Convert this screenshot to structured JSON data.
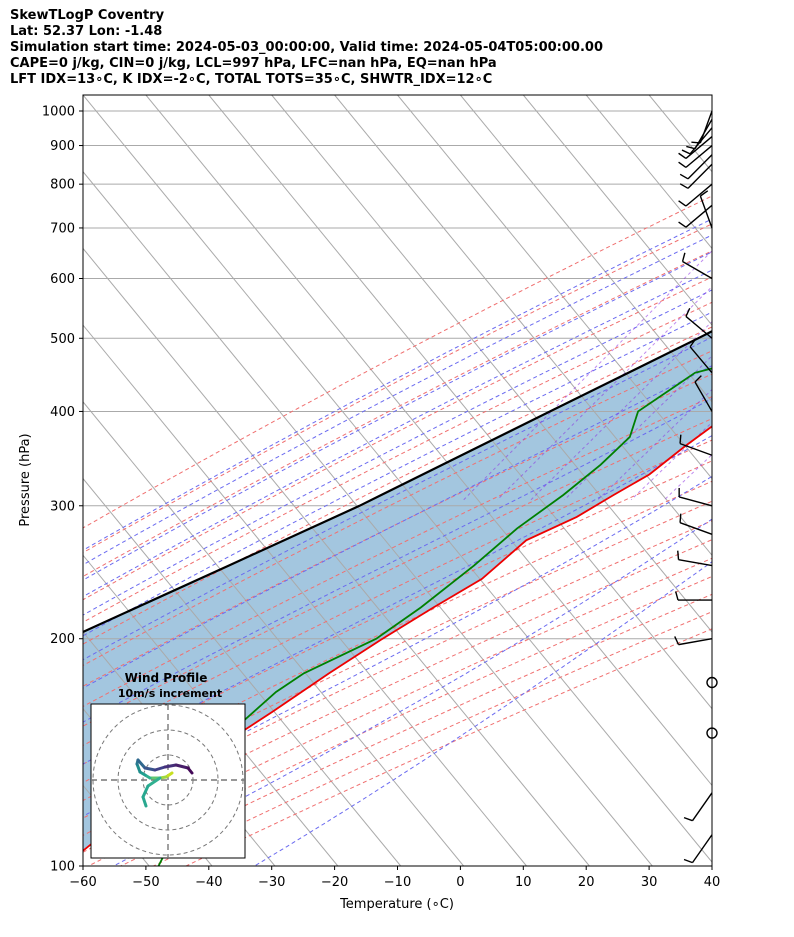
{
  "header": {
    "line1": "SkewTLogP Coventry",
    "line2": "Lat: 52.37   Lon: -1.48",
    "line3": "Simulation start time: 2024-05-03_00:00:00, Valid time: 2024-05-04T05:00:00.00",
    "line4": "CAPE=0 j/kg, CIN=0 j/kg, LCL=997 hPa, LFC=nan hPa, EQ=nan hPa",
    "line5": "LFT IDX=13∘C, K IDX=-2∘C, TOTAL TOTS=35∘C, SHWTR_IDX=12∘C"
  },
  "chart_data": {
    "type": "line",
    "subtype": "skew-t log-p",
    "xlabel": "Temperature (∘C)",
    "ylabel": "Pressure (hPa)",
    "xlim": [
      -60,
      40
    ],
    "ylim": [
      1050,
      100
    ],
    "y_scale": "log",
    "x_ticks": [
      "−60",
      "−50",
      "−40",
      "−30",
      "−20",
      "−10",
      "0",
      "10",
      "20",
      "30",
      "40"
    ],
    "y_ticks": [
      1000,
      900,
      800,
      700,
      600,
      500,
      400,
      300,
      200,
      100
    ],
    "grid": true,
    "colors": {
      "temperature": "#ee0000",
      "dewpoint": "#008000",
      "parcel": "#000000",
      "fill": "#a3c6df",
      "dry_adiabat": "#f07070",
      "moist_adiabat": "#6b6bf0",
      "mixing_ratio": "#8a2be2",
      "isotherm": "#aaaaaa"
    },
    "series": [
      {
        "name": "temperature",
        "points": [
          [
            1000,
            7.5
          ],
          [
            970,
            9
          ],
          [
            950,
            9
          ],
          [
            930,
            8.5
          ],
          [
            900,
            8
          ],
          [
            850,
            7.5
          ],
          [
            800,
            7.5
          ],
          [
            750,
            7.5
          ],
          [
            700,
            7.5
          ],
          [
            650,
            6
          ],
          [
            600,
            3
          ],
          [
            550,
            -1.5
          ],
          [
            500,
            -6
          ],
          [
            450,
            -11
          ],
          [
            400,
            -16
          ],
          [
            360,
            -19
          ],
          [
            330,
            -21
          ],
          [
            310,
            -24
          ],
          [
            290,
            -27
          ],
          [
            270,
            -32
          ],
          [
            240,
            -34
          ],
          [
            220,
            -38
          ],
          [
            200,
            -42
          ],
          [
            180,
            -46
          ],
          [
            160,
            -50
          ],
          [
            140,
            -55
          ],
          [
            120,
            -59
          ],
          [
            100,
            -63
          ]
        ]
      },
      {
        "name": "dewpoint",
        "points": [
          [
            1000,
            6
          ],
          [
            970,
            6
          ],
          [
            940,
            4
          ],
          [
            900,
            0
          ],
          [
            850,
            -6
          ],
          [
            800,
            -11
          ],
          [
            780,
            -13
          ],
          [
            750,
            -14
          ],
          [
            700,
            -18
          ],
          [
            650,
            -24
          ],
          [
            600,
            -25
          ],
          [
            550,
            -20
          ],
          [
            500,
            -15
          ],
          [
            470,
            -20
          ],
          [
            450,
            -27
          ],
          [
            400,
            -31
          ],
          [
            370,
            -29
          ],
          [
            340,
            -30
          ],
          [
            310,
            -32
          ],
          [
            280,
            -35
          ],
          [
            250,
            -37
          ],
          [
            220,
            -40
          ],
          [
            200,
            -43
          ],
          [
            180,
            -50
          ],
          [
            170,
            -52
          ],
          [
            150,
            -54
          ],
          [
            120,
            -51
          ],
          [
            100,
            -48
          ]
        ]
      },
      {
        "name": "parcel",
        "points": [
          [
            1000,
            7
          ],
          [
            900,
            3
          ],
          [
            800,
            -3
          ],
          [
            700,
            -11
          ],
          [
            600,
            -20
          ],
          [
            500,
            -31
          ],
          [
            400,
            -45
          ],
          [
            300,
            -63
          ],
          [
            250,
            -76
          ],
          [
            200,
            -92
          ],
          [
            150,
            -113
          ],
          [
            120,
            -132
          ],
          [
            100,
            -146
          ]
        ]
      }
    ],
    "wind_barbs_pressure": [
      1000,
      975,
      950,
      925,
      900,
      875,
      850,
      800,
      750,
      700,
      600,
      500,
      450,
      400,
      350,
      300,
      275,
      250,
      225,
      200,
      175,
      150,
      125,
      110
    ],
    "wind_profile": {
      "title": "Wind Profile",
      "subtitle": "10m/s increment",
      "rings": 3
    }
  }
}
